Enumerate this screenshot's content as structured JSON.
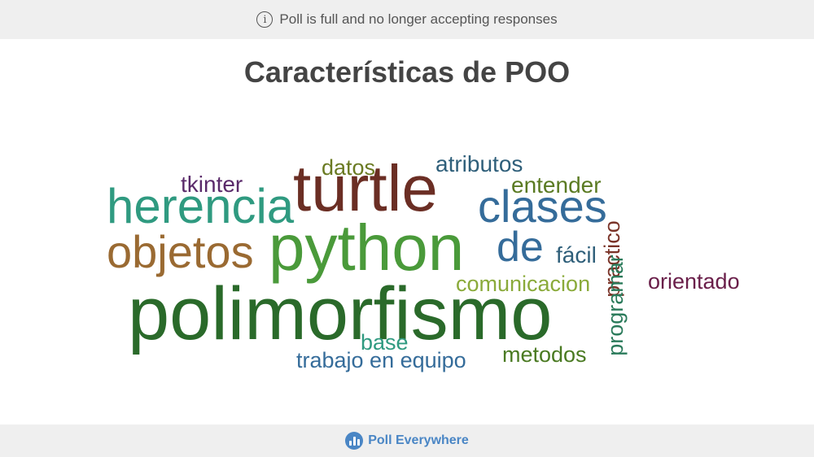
{
  "banner": {
    "icon": "info-icon",
    "text": "Poll is full and no longer accepting responses"
  },
  "title": "Características de POO",
  "words": [
    {
      "text": "polimorfismo",
      "color": "#2a6a2a"
    },
    {
      "text": "python",
      "color": "#4a9a3a"
    },
    {
      "text": "turtle",
      "color": "#6b2e24"
    },
    {
      "text": "herencia",
      "color": "#2f9a80"
    },
    {
      "text": "objetos",
      "color": "#9a6a32"
    },
    {
      "text": "clases",
      "color": "#356c9a"
    },
    {
      "text": "de",
      "color": "#356c9a"
    },
    {
      "text": "datos",
      "color": "#6a7a22"
    },
    {
      "text": "atributos",
      "color": "#2f5f7a"
    },
    {
      "text": "tkinter",
      "color": "#5a2a6a"
    },
    {
      "text": "entender",
      "color": "#5a7a22"
    },
    {
      "text": "fácil",
      "color": "#2f5f7a"
    },
    {
      "text": "comunicacion",
      "color": "#8aaa3a"
    },
    {
      "text": "orientado",
      "color": "#6a1f4a"
    },
    {
      "text": "practico",
      "color": "#7a3328"
    },
    {
      "text": "programar",
      "color": "#2a7a5a"
    },
    {
      "text": "base",
      "color": "#2f9a80"
    },
    {
      "text": "metodos",
      "color": "#4a7a22"
    },
    {
      "text": "trabajo en equipo",
      "color": "#356c9a"
    }
  ],
  "footer": {
    "logo": "poll-everywhere-logo",
    "text": "Poll Everywhere"
  }
}
